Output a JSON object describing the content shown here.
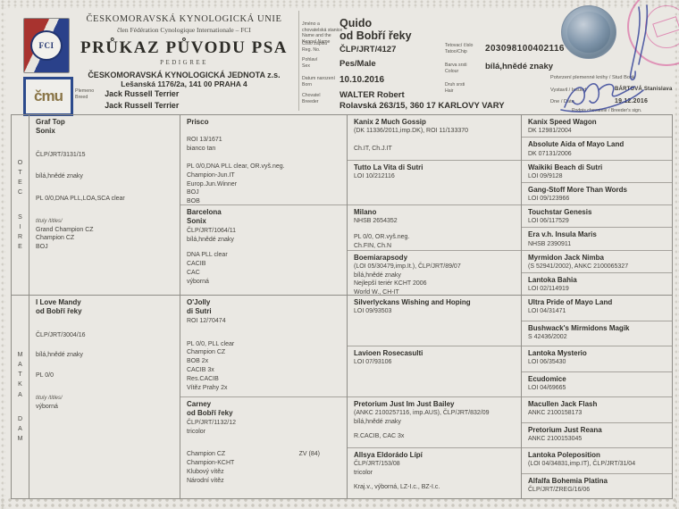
{
  "document": {
    "union": "ČESKOMORAVSKÁ KYNOLOGICKÁ UNIE",
    "member": "člen Fédération Cynologique Internationale – FCI",
    "title": "PRŮKAZ PŮVODU PSA",
    "title_en": "PEDIGREE",
    "org": "ČESKOMORAVSKÁ KYNOLOGICKÁ JEDNOTA z.s.",
    "org_address": "Lešanská 1176/2a, 141 00 PRAHA 4",
    "breed_label_cs": "Plemeno",
    "breed_label_en": "Breed",
    "breed_line1": "Jack Russell Terrier",
    "breed_line2": "Jack Russell Terrier",
    "fci_logo_text": "FCI",
    "cmkj_logo_text": "čmu"
  },
  "labels": {
    "name_cs": "Jméno a chovatelská stanice",
    "name_en": "Name and the Kennel Name",
    "reg_cs": "Číslo zápisu",
    "reg_en": "Reg. No.",
    "sex_cs": "Pohlaví",
    "sex_en": "Sex",
    "born_cs": "Datum narození",
    "born_en": "Born",
    "breeder_cs": "Chovatel",
    "breeder_en": "Breeder",
    "tattoo_cs": "Tetovací číslo",
    "tattoo_en": "Tatoo/Chip",
    "colour_cs": "Barva srsti",
    "colour_en": "Colour",
    "hair_cs": "Druh srsti",
    "hair_en": "Hair",
    "studbook": "Potvrzení plemenné knihy / Stud Book",
    "issued": "Vystavil / Issued",
    "date": "Dne / Date",
    "breeder_sign": "Podpis chovatele / Breeder's sign."
  },
  "dog": {
    "name": "Quido",
    "kennel": "od Bobří řeky",
    "reg": "ČLP/JRT/4127",
    "sex": "Pes/Male",
    "born": "10.10.2016",
    "breeder_name": "WALTER Robert",
    "breeder_address": "Rolavská 263/15, 360 17 KARLOVY VARY",
    "chip": "203098100402116",
    "colour": "bílá,hnědé znaky",
    "issued_by": "BÁRTOVÁ Stanislava",
    "issue_date": "19.12.2016"
  },
  "pedigree": {
    "rail": {
      "sire_cs": "OTEC",
      "sire_en": "SIRE",
      "dam_cs": "MATKA",
      "dam_en": "DAM"
    },
    "sire": {
      "gen1": [
        {
          "name": [
            "Graf Top",
            "Sonix"
          ],
          "lines": [
            {
              "gap": 16
            },
            {
              "text": "ČLP/JRT/3131/15"
            },
            {
              "gap": 14
            },
            {
              "text": "bílá,hnědé znaky"
            },
            {
              "gap": 16
            },
            {
              "text": "PL 0/0,DNA PLL,LOA,SCA clear"
            },
            {
              "gap": 16
            },
            {
              "text": "tituly /titles/",
              "style": "label"
            },
            {
              "text": "Grand Champion CZ"
            },
            {
              "text": "Champion CZ"
            },
            {
              "text": "BOJ"
            }
          ]
        }
      ],
      "gen2": [
        {
          "name": [
            "Prisco"
          ],
          "lines": [
            {
              "gap": 10
            },
            {
              "text": "ROI 13/1671"
            },
            {
              "text": "bianco tan"
            },
            {
              "gap": 10
            },
            {
              "text": "PL 0/0,DNA PLL clear, OR.vyš.neg."
            },
            {
              "text": "Champion-Jun.IT"
            },
            {
              "text": "Europ.Jun.Winner"
            },
            {
              "text": "BOJ"
            },
            {
              "text": "BOB"
            }
          ]
        },
        {
          "name": [
            "Barcelona",
            "Sonix"
          ],
          "lines": [
            {
              "text": "ČLP/JRT/1064/11"
            },
            {
              "text": "bílá,hnědé znaky"
            },
            {
              "gap": 8
            },
            {
              "text": "DNA PLL clear"
            },
            {
              "text": "CACIB"
            },
            {
              "text": "CAC"
            },
            {
              "text": "výborná"
            }
          ]
        }
      ],
      "gen3": [
        {
          "name": [
            "Kanix 2 Much Gossip"
          ],
          "lines": [
            {
              "text": "(DK 11336/2011,imp.DK), ROI 11/133370"
            },
            {
              "gap": 10
            },
            {
              "text": "Ch.IT, Ch.J.IT"
            }
          ]
        },
        {
          "name": [
            "Tutto La Vita di Sutri"
          ],
          "lines": [
            {
              "text": "LOI 10/212116"
            }
          ]
        },
        {
          "name": [
            "Milano"
          ],
          "lines": [
            {
              "text": "NHSB 2654352"
            },
            {
              "gap": 8
            },
            {
              "text": "PL 0/0, OR.vyš.neg."
            },
            {
              "text": "Ch.FIN, Ch.N"
            }
          ]
        },
        {
          "name": [
            "Boemiarapsody"
          ],
          "lines": [
            {
              "text": "(LOI 05/30479,imp.It.), ČLP/JRT/89/07"
            },
            {
              "text": "bílá,hnědé znaky"
            },
            {
              "text": "Nejlepší teriér KCHT 2006"
            },
            {
              "text": "World W., CH-IT"
            }
          ]
        }
      ],
      "gen4": [
        {
          "name": [
            "Kanix Speed Wagon"
          ],
          "lines": [
            {
              "text": "DK 12981/2004"
            }
          ]
        },
        {
          "name": [
            "Absolute Aida of Mayo Land"
          ],
          "lines": [
            {
              "text": "DK 07131/2006"
            }
          ]
        },
        {
          "name": [
            "Waikiki Beach di Sutri"
          ],
          "lines": [
            {
              "text": "LOI 09/9128"
            }
          ]
        },
        {
          "name": [
            "Gang-Stoff More Than Words"
          ],
          "lines": [
            {
              "text": "LOI 09/123966"
            }
          ]
        },
        {
          "name": [
            "Touchstar Genesis"
          ],
          "lines": [
            {
              "text": "LOI 06/117529"
            }
          ]
        },
        {
          "name": [
            "Era v.h. Insula Maris"
          ],
          "lines": [
            {
              "text": "NHSB 2390911"
            }
          ]
        },
        {
          "name": [
            "Myrmidon Jack Nimba"
          ],
          "lines": [
            {
              "text": "(S 52941/2002), ANKC 2100065327"
            }
          ]
        },
        {
          "name": [
            "Lantoka Bahia"
          ],
          "lines": [
            {
              "text": "LOI 02/114919"
            }
          ]
        }
      ]
    },
    "dam": {
      "gen1": [
        {
          "name": [
            "I Love Mandy",
            "od Bobří řeky"
          ],
          "lines": [
            {
              "gap": 16
            },
            {
              "text": "ČLP/JRT/3004/16"
            },
            {
              "gap": 12
            },
            {
              "text": "bílá,hnědé znaky"
            },
            {
              "gap": 14
            },
            {
              "text": "PL 0/0"
            },
            {
              "gap": 16
            },
            {
              "text": "tituly /titles/",
              "style": "label"
            },
            {
              "text": "výborná"
            }
          ]
        }
      ],
      "gen2": [
        {
          "name": [
            "O'Jolly",
            "di Sutri"
          ],
          "lines": [
            {
              "text": "ROI 12/70474"
            },
            {
              "gap": 16
            },
            {
              "text": "PL 0/0, PLL clear"
            },
            {
              "text": "Champion CZ"
            },
            {
              "text": "BOB 2x"
            },
            {
              "text": "CACIB 3x"
            },
            {
              "text": "Res.CACIB"
            },
            {
              "text": "Vítěz Prahy 2x"
            }
          ]
        },
        {
          "name": [
            "Carney",
            "od Bobří řeky"
          ],
          "lines": [
            {
              "text": "ČLP/JRT/1132/12"
            },
            {
              "text": "tricolor"
            },
            {
              "gap": 16
            },
            {
              "text": "Champion CZ",
              "right": "ZV (84)"
            },
            {
              "text": "Champion-KCHT"
            },
            {
              "text": "Klubový vítěz"
            },
            {
              "text": "Národní vítěz"
            }
          ]
        }
      ],
      "gen3": [
        {
          "name": [
            "Silverlyckans Wishing and Hoping"
          ],
          "lines": [
            {
              "text": "LOI 09/93503"
            }
          ]
        },
        {
          "name": [
            "Lavioen Rosecasulti"
          ],
          "lines": [
            {
              "text": "LOI 07/93106"
            }
          ]
        },
        {
          "name": [
            "Pretorium Just Im Just Bailey"
          ],
          "lines": [
            {
              "text": "(ANKC 2100257116, imp.AUS), ČLP/JRT/832/09"
            },
            {
              "text": "bílá,hnědé znaky"
            },
            {
              "gap": 6
            },
            {
              "text": "R.CACIB, CAC 3x"
            }
          ]
        },
        {
          "name": [
            "Allsya Eldorádo Lípí"
          ],
          "lines": [
            {
              "text": "ČLP/JRT/153/08"
            },
            {
              "text": "tricolor"
            },
            {
              "gap": 6
            },
            {
              "text": "Kraj.v., výborná, LZ-I.c., BZ-I.c."
            }
          ]
        }
      ],
      "gen4": [
        {
          "name": [
            "Ultra Pride of Mayo Land"
          ],
          "lines": [
            {
              "text": "LOI 04/31471"
            }
          ]
        },
        {
          "name": [
            "Bushwack's Mirmidons Magik"
          ],
          "lines": [
            {
              "text": "S 42436/2002"
            }
          ]
        },
        {
          "name": [
            "Lantoka Mysterio"
          ],
          "lines": [
            {
              "text": "LOI 06/35430"
            }
          ]
        },
        {
          "name": [
            "Ecudomice"
          ],
          "lines": [
            {
              "text": "LOI 04/69665"
            }
          ]
        },
        {
          "name": [
            "Macullen Jack Flash"
          ],
          "lines": [
            {
              "text": "ANKC 2100158173"
            }
          ]
        },
        {
          "name": [
            "Pretorium Just Reana"
          ],
          "lines": [
            {
              "text": "ANKC 2100153045"
            }
          ]
        },
        {
          "name": [
            "Lantoka Poleposition"
          ],
          "lines": [
            {
              "text": "(LOI 04/34831,imp.IT), ČLP/JRT/31/04"
            }
          ]
        },
        {
          "name": [
            "Alfalfa Bohemia Platina"
          ],
          "lines": [
            {
              "text": "ČLP/JRT/ZREG/16/06"
            }
          ]
        }
      ]
    }
  }
}
